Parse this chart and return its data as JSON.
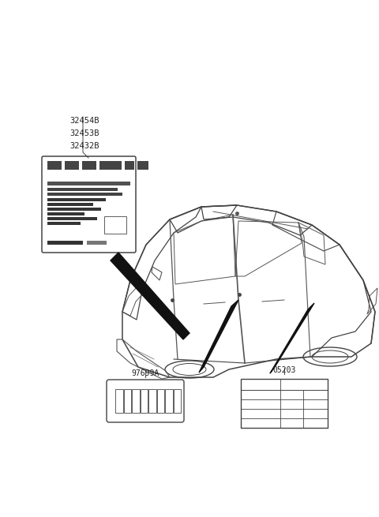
{
  "bg_color": "#ffffff",
  "part_numbers": [
    "32454B",
    "32453B",
    "32432B"
  ],
  "label1_id": "97699A",
  "label2_id": "05203",
  "line_color": "#333333",
  "leader_color": "#111111",
  "text_color": "#222222",
  "fig_w": 4.8,
  "fig_h": 6.55,
  "dpi": 100
}
